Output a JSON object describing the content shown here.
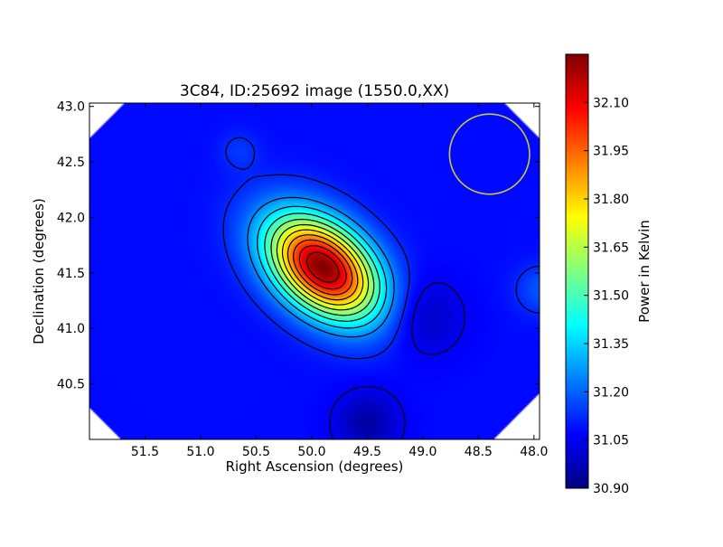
{
  "chart_data": {
    "type": "heatmap",
    "title": "3C84, ID:25692 image (1550.0,XX)",
    "xlabel": "Right Ascension (degrees)",
    "ylabel": "Declination (degrees)",
    "xlim": [
      52.0,
      47.95
    ],
    "ylim": [
      40.0,
      43.03
    ],
    "x_ticks": [
      "51.5",
      "51.0",
      "50.5",
      "50.0",
      "49.5",
      "49.0",
      "48.5",
      "48.0"
    ],
    "x_tick_values": [
      51.5,
      51.0,
      50.5,
      50.0,
      49.5,
      49.0,
      48.5,
      48.0
    ],
    "y_ticks": [
      "40.5",
      "41.0",
      "41.5",
      "42.0",
      "42.5",
      "43.0"
    ],
    "y_tick_values": [
      40.5,
      41.0,
      41.5,
      42.0,
      42.5,
      43.0
    ],
    "x_reversed": true,
    "grid": false,
    "colormap": "jet",
    "colorbar": {
      "label": "Power in Kelvin",
      "range": [
        30.9,
        32.25
      ],
      "ticks": [
        "30.90",
        "31.05",
        "31.20",
        "31.35",
        "31.50",
        "31.65",
        "31.80",
        "31.95",
        "32.10"
      ],
      "tick_values": [
        30.9,
        31.05,
        31.2,
        31.35,
        31.5,
        31.65,
        31.8,
        31.95,
        32.1
      ]
    },
    "background_level": 31.08,
    "peak": {
      "ra": 49.9,
      "dec": 41.55,
      "value": 32.25
    },
    "features": [
      {
        "kind": "local-max",
        "ra": 50.65,
        "dec": 42.6,
        "value": 31.14
      },
      {
        "kind": "local-max",
        "ra": 47.95,
        "dec": 41.35,
        "value": 31.18
      },
      {
        "kind": "local-min",
        "ra": 49.5,
        "dec": 40.15,
        "value": 30.95
      },
      {
        "kind": "local-min",
        "ra": 49.0,
        "dec": 41.1,
        "value": 30.98
      }
    ],
    "contour_levels": [
      31.05,
      31.12,
      31.25,
      31.35,
      31.45,
      31.55,
      31.65,
      31.75,
      31.85,
      31.95,
      32.05,
      32.15
    ],
    "beam_circle": {
      "ra": 48.4,
      "dec": 42.57,
      "radius_deg": 0.36,
      "color": "#c8c832"
    },
    "colors": {
      "frame": "#000000",
      "background": "#ffffff"
    }
  }
}
